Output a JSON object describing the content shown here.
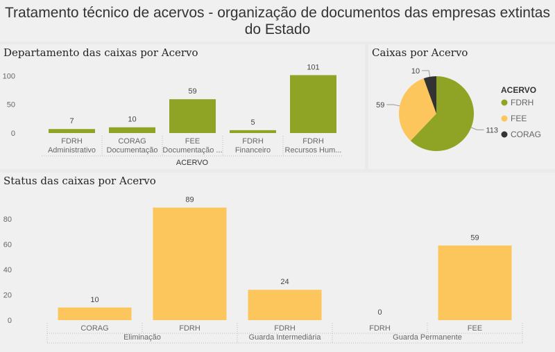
{
  "header": {
    "title": "Tratamento técnico de acervos - organização de documentos das empresas extintas do Estado"
  },
  "colors": {
    "fdrh": "#8fa324",
    "fee": "#fdc65d",
    "corag": "#333333",
    "axis_text": "#666666",
    "label_text": "#444444"
  },
  "chart_data": [
    {
      "type": "bar",
      "title": "Departamento das caixas por Acervo",
      "xlabel": "ACERVO",
      "ylabel": "",
      "ylim": [
        0,
        110
      ],
      "yticks": [
        0,
        50,
        100
      ],
      "grid": false,
      "categories": [
        {
          "top": "FDRH",
          "bottom": "Administrativo",
          "value": 7
        },
        {
          "top": "CORAG",
          "bottom": "Documentação",
          "value": 10
        },
        {
          "top": "FEE",
          "bottom": "Documentação ...",
          "value": 59
        },
        {
          "top": "FDRH",
          "bottom": "Financeiro",
          "value": 5
        },
        {
          "top": "FDRH",
          "bottom": "Recursos Hum...",
          "value": 101
        }
      ]
    },
    {
      "type": "pie",
      "title": "Caixas por Acervo",
      "legend_title": "ACERVO",
      "legend_position": "right",
      "slices": [
        {
          "name": "FDRH",
          "value": 113,
          "color": "#8fa324"
        },
        {
          "name": "FEE",
          "value": 59,
          "color": "#fdc65d"
        },
        {
          "name": "CORAG",
          "value": 10,
          "color": "#333333"
        }
      ]
    },
    {
      "type": "bar",
      "title": "Status das caixas por Acervo",
      "xlabel": "",
      "ylabel": "",
      "ylim": [
        0,
        95
      ],
      "yticks": [
        0,
        20,
        40,
        60,
        80
      ],
      "grid": false,
      "groups": [
        {
          "name": "Eliminação",
          "items": [
            {
              "label": "CORAG",
              "value": 10
            },
            {
              "label": "FDRH",
              "value": 89
            }
          ]
        },
        {
          "name": "Guarda Intermediária",
          "items": [
            {
              "label": "FDRH",
              "value": 24
            }
          ]
        },
        {
          "name": "Guarda Permanente",
          "items": [
            {
              "label": "FDRH",
              "value": 0
            },
            {
              "label": "FEE",
              "value": 59
            }
          ]
        }
      ]
    }
  ]
}
